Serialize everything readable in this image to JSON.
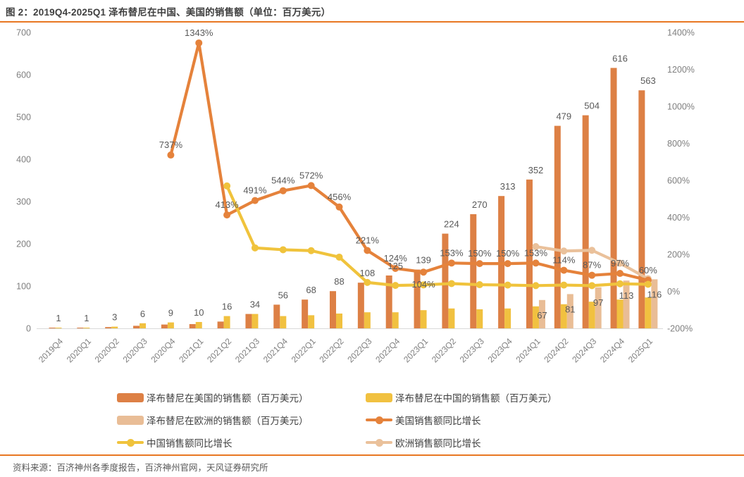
{
  "figure": {
    "title": "图 2：2019Q4-2025Q1 泽布替尼在中国、美国的销售额（单位：百万美元）",
    "source": "资料来源：百济神州各季度报告，百济神州官网，天风证券研究所",
    "accent_color": "#E87722"
  },
  "chart_data": {
    "type": "bar",
    "subtype": "combo-bar-line-dual-axis",
    "title": "2019Q4-2025Q1 泽布替尼在中国、美国的销售额（单位：百万美元）",
    "grid": "off",
    "legend_position": "bottom",
    "categories": [
      "2019Q4",
      "2020Q1",
      "2020Q2",
      "2020Q3",
      "2020Q4",
      "2021Q1",
      "2021Q2",
      "2021Q3",
      "2021Q4",
      "2022Q1",
      "2022Q2",
      "2022Q3",
      "2022Q4",
      "2023Q1",
      "2023Q2",
      "2023Q3",
      "2023Q4",
      "2024Q1",
      "2024Q2",
      "2024Q3",
      "2024Q4",
      "2025Q1"
    ],
    "left_axis": {
      "min": 0,
      "max": 700,
      "step": 100,
      "label": ""
    },
    "right_axis": {
      "min": -200,
      "max": 1400,
      "step": 200,
      "suffix": "%"
    },
    "series": [
      {
        "name": "泽布替尼在美国的销售额（百万美元）",
        "type": "bar",
        "axis": "left",
        "color": "#DD8045",
        "labeled": true,
        "values": [
          1,
          1,
          3,
          6,
          9,
          10,
          16,
          34,
          56,
          68,
          88,
          108,
          125,
          139,
          224,
          270,
          313,
          352,
          479,
          504,
          616,
          563
        ]
      },
      {
        "name": "泽布替尼在中国的销售额（百万美元）",
        "type": "bar",
        "axis": "left",
        "color": "#F1C140",
        "labeled": false,
        "estimated": true,
        "values": [
          0,
          0,
          4,
          12,
          14,
          15,
          29,
          34,
          29,
          31,
          35,
          38,
          38,
          43,
          47,
          45,
          47,
          52,
          57,
          63,
          68,
          73
        ]
      },
      {
        "name": "泽布替尼在欧洲的销售额（百万美元）",
        "type": "bar",
        "axis": "left",
        "color": "#E9BD96",
        "labeled": true,
        "values": [
          null,
          null,
          null,
          null,
          null,
          null,
          null,
          null,
          null,
          null,
          null,
          null,
          null,
          null,
          null,
          null,
          null,
          67,
          81,
          97,
          113,
          116
        ]
      },
      {
        "name": "美国销售额同比增长",
        "type": "line",
        "axis": "right",
        "color": "#E5823B",
        "labeled": true,
        "suffix": "%",
        "label_below_indices": [
          13
        ],
        "values": [
          null,
          null,
          null,
          null,
          737,
          1343,
          413,
          491,
          544,
          572,
          456,
          221,
          124,
          104,
          153,
          150,
          150,
          153,
          114,
          87,
          97,
          60
        ]
      },
      {
        "name": "中国销售额同比增长",
        "type": "line",
        "axis": "right",
        "color": "#F0C33C",
        "labeled": false,
        "estimated": true,
        "suffix": "%",
        "values": [
          null,
          null,
          null,
          null,
          null,
          null,
          570,
          235,
          225,
          220,
          185,
          48,
          32,
          35,
          42,
          36,
          34,
          31,
          34,
          31,
          41,
          38
        ]
      },
      {
        "name": "欧洲销售额同比增长",
        "type": "line",
        "axis": "right",
        "color": "#EAC19B",
        "labeled": false,
        "estimated": true,
        "suffix": "%",
        "values": [
          null,
          null,
          null,
          null,
          null,
          null,
          null,
          null,
          null,
          null,
          null,
          null,
          null,
          null,
          null,
          null,
          null,
          242,
          218,
          222,
          152,
          68
        ]
      }
    ]
  }
}
